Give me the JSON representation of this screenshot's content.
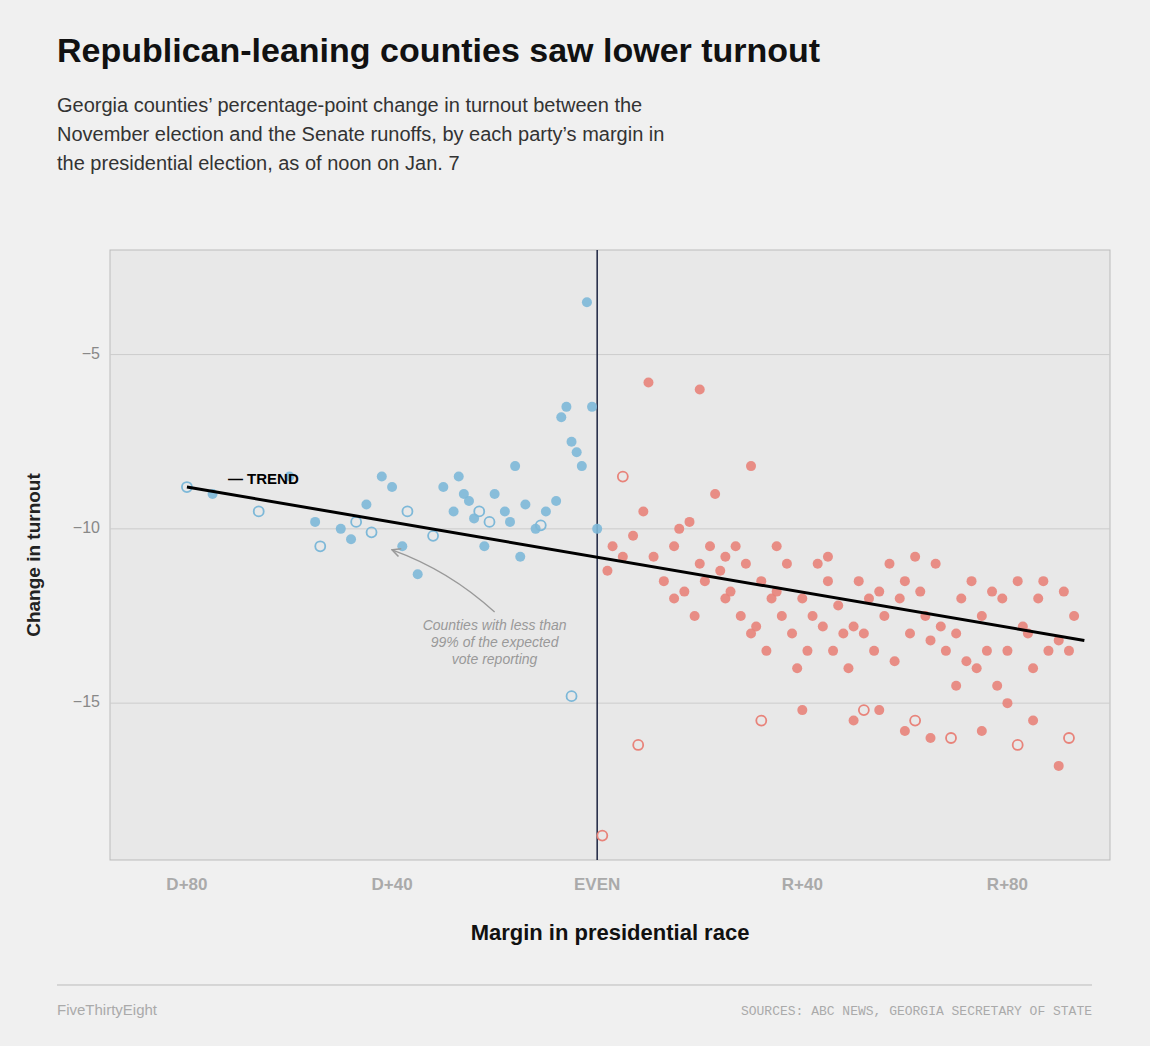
{
  "chart_data": {
    "type": "scatter",
    "title": "Republican-leaning counties saw lower turnout",
    "subtitle": "Georgia counties’ percentage-point change in turnout between the\nNovember election and the Senate runoffs, by each party’s margin in\nthe presidential election, as of noon on Jan. 7",
    "x_label": "Margin in presidential race",
    "y_label": "Change in turnout",
    "credit": "FiveThirtyEight",
    "source": "SOURCES: ABC NEWS, GEORGIA SECRETARY OF STATE",
    "xlim": [
      -95,
      100
    ],
    "ylim": [
      -19.5,
      -2.0
    ],
    "xticks": [
      {
        "value": -80,
        "label": "D+80"
      },
      {
        "value": -40,
        "label": "D+40"
      },
      {
        "value": 0,
        "label": "EVEN"
      },
      {
        "value": 40,
        "label": "R+40"
      },
      {
        "value": 80,
        "label": "R+80"
      }
    ],
    "yticks": [
      {
        "value": -5,
        "label": "−5"
      },
      {
        "value": -10,
        "label": "−10"
      },
      {
        "value": -15,
        "label": "−15"
      }
    ],
    "grid": "y",
    "series": [
      {
        "type": "scatter",
        "color": "#7db8d8",
        "marker": "circle",
        "x": [
          -75,
          -60,
          -55,
          -50,
          -48,
          -45,
          -42,
          -40,
          -38,
          -35,
          -30,
          -28,
          -27,
          -26,
          -25,
          -24,
          -22,
          -20,
          -18,
          -17,
          -16,
          -15,
          -14,
          -12,
          -10,
          -8,
          -7,
          -6,
          -5,
          -4,
          -3,
          -2,
          -1,
          0
        ],
        "values": [
          -9.0,
          -8.5,
          -9.8,
          -10.0,
          -10.3,
          -9.3,
          -8.5,
          -8.8,
          -10.5,
          -11.3,
          -8.8,
          -9.5,
          -8.5,
          -9.0,
          -9.2,
          -9.7,
          -10.5,
          -9.0,
          -9.5,
          -9.8,
          -8.2,
          -10.8,
          -9.3,
          -10.0,
          -9.5,
          -9.2,
          -6.8,
          -6.5,
          -7.5,
          -7.8,
          -8.2,
          -3.5,
          -6.5,
          -10.0
        ]
      },
      {
        "type": "scatter",
        "color": "#7db8d8",
        "marker": "open-circle",
        "x": [
          -80,
          -66,
          -54,
          -47,
          -44,
          -37,
          -32,
          -23,
          -21,
          -11,
          -5
        ],
        "values": [
          -8.8,
          -9.5,
          -10.5,
          -9.8,
          -10.1,
          -9.5,
          -10.2,
          -9.5,
          -9.8,
          -9.9,
          -14.8
        ]
      },
      {
        "type": "scatter",
        "color": "#e8837a",
        "marker": "circle",
        "x": [
          2,
          3,
          5,
          7,
          9,
          11,
          13,
          15,
          16,
          17,
          18,
          19,
          20,
          21,
          22,
          23,
          24,
          25,
          26,
          27,
          28,
          29,
          30,
          31,
          32,
          33,
          34,
          35,
          36,
          37,
          38,
          39,
          40,
          41,
          42,
          43,
          44,
          45,
          46,
          47,
          48,
          49,
          50,
          51,
          52,
          53,
          54,
          55,
          56,
          57,
          58,
          59,
          60,
          61,
          62,
          63,
          64,
          65,
          66,
          67,
          68,
          70,
          71,
          72,
          73,
          74,
          75,
          76,
          77,
          78,
          79,
          80,
          82,
          83,
          84,
          85,
          86,
          87,
          88,
          90,
          91,
          92,
          93,
          10,
          20,
          30,
          40,
          50,
          60,
          70,
          80,
          85,
          90,
          15,
          25,
          35,
          45,
          55,
          65,
          75
        ],
        "values": [
          -11.2,
          -10.5,
          -10.8,
          -10.2,
          -9.5,
          -10.8,
          -11.5,
          -12.0,
          -10.0,
          -11.8,
          -9.8,
          -12.5,
          -11.0,
          -11.5,
          -10.5,
          -9.0,
          -11.2,
          -12.0,
          -11.8,
          -10.5,
          -12.5,
          -11.0,
          -13.0,
          -12.8,
          -11.5,
          -13.5,
          -12.0,
          -11.8,
          -12.5,
          -11.0,
          -13.0,
          -14.0,
          -12.0,
          -13.5,
          -12.5,
          -11.0,
          -12.8,
          -11.5,
          -13.5,
          -12.2,
          -13.0,
          -14.0,
          -12.8,
          -11.5,
          -13.0,
          -12.0,
          -13.5,
          -11.8,
          -12.5,
          -11.0,
          -13.8,
          -12.0,
          -11.5,
          -13.0,
          -10.8,
          -11.8,
          -12.5,
          -13.2,
          -11.0,
          -12.8,
          -13.5,
          -13.0,
          -12.0,
          -13.8,
          -11.5,
          -14.0,
          -12.5,
          -13.5,
          -11.8,
          -14.5,
          -12.0,
          -13.5,
          -11.5,
          -12.8,
          -13.0,
          -14.0,
          -12.0,
          -11.5,
          -13.5,
          -13.2,
          -11.8,
          -13.5,
          -12.5,
          -5.8,
          -6.0,
          -8.2,
          -15.2,
          -15.5,
          -15.8,
          -14.5,
          -15.0,
          -15.5,
          -16.8,
          -10.5,
          -10.8,
          -10.5,
          -10.8,
          -15.2,
          -16.0,
          -15.8
        ]
      },
      {
        "type": "scatter",
        "color": "#e8837a",
        "marker": "open-circle",
        "x": [
          5,
          32,
          52,
          62,
          1,
          8,
          69,
          82,
          92
        ],
        "values": [
          -8.5,
          -15.5,
          -15.2,
          -15.5,
          -18.8,
          -16.2,
          -16.0,
          -16.2,
          -16.0
        ]
      },
      {
        "type": "line",
        "color": "#000000",
        "line_style": "solid",
        "x": [
          -80,
          95
        ],
        "values": [
          -8.8,
          -13.2
        ]
      }
    ],
    "reference_lines": [
      {
        "axis": "x",
        "value": 0
      }
    ],
    "annotations": [
      {
        "text": "— TREND",
        "x": -72,
        "y": -8.6
      },
      {
        "text": "Counties with less than\n99% of the expected\nvote reporting",
        "x": -20,
        "y": -12.5,
        "arrow_x": -40,
        "arrow_y": -10.6
      }
    ]
  }
}
